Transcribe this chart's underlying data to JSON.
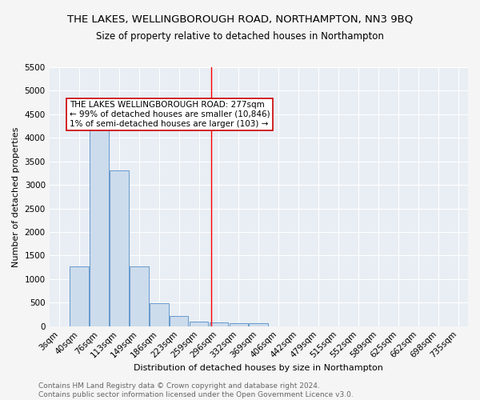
{
  "title1": "THE LAKES, WELLINGBOROUGH ROAD, NORTHAMPTON, NN3 9BQ",
  "title2": "Size of property relative to detached houses in Northampton",
  "xlabel": "Distribution of detached houses by size in Northampton",
  "ylabel": "Number of detached properties",
  "bar_color": "#cddcec",
  "bar_edge_color": "#6699cc",
  "categories": [
    "3sqm",
    "40sqm",
    "76sqm",
    "113sqm",
    "149sqm",
    "186sqm",
    "223sqm",
    "259sqm",
    "296sqm",
    "332sqm",
    "369sqm",
    "406sqm",
    "442sqm",
    "479sqm",
    "515sqm",
    "552sqm",
    "589sqm",
    "625sqm",
    "662sqm",
    "698sqm",
    "735sqm"
  ],
  "values": [
    0,
    1270,
    4350,
    3300,
    1270,
    480,
    220,
    100,
    80,
    55,
    55,
    0,
    0,
    0,
    0,
    0,
    0,
    0,
    0,
    0,
    0
  ],
  "red_line_x": 7.62,
  "annotation_text": "THE LAKES WELLINGBOROUGH ROAD: 277sqm\n← 99% of detached houses are smaller (10,846)\n1% of semi-detached houses are larger (103) →",
  "annotation_box_color": "#ffffff",
  "annotation_border_color": "#cc0000",
  "ylim": [
    0,
    5500
  ],
  "yticks": [
    0,
    500,
    1000,
    1500,
    2000,
    2500,
    3000,
    3500,
    4000,
    4500,
    5000,
    5500
  ],
  "footer1": "Contains HM Land Registry data © Crown copyright and database right 2024.",
  "footer2": "Contains public sector information licensed under the Open Government Licence v3.0.",
  "fig_bg_color": "#f5f5f5",
  "plot_bg_color": "#e8eef4",
  "grid_color": "#ffffff",
  "title1_fontsize": 9.5,
  "title2_fontsize": 8.5,
  "axis_label_fontsize": 8,
  "tick_fontsize": 7.5,
  "footer_fontsize": 6.5,
  "ann_fontsize": 7.5
}
